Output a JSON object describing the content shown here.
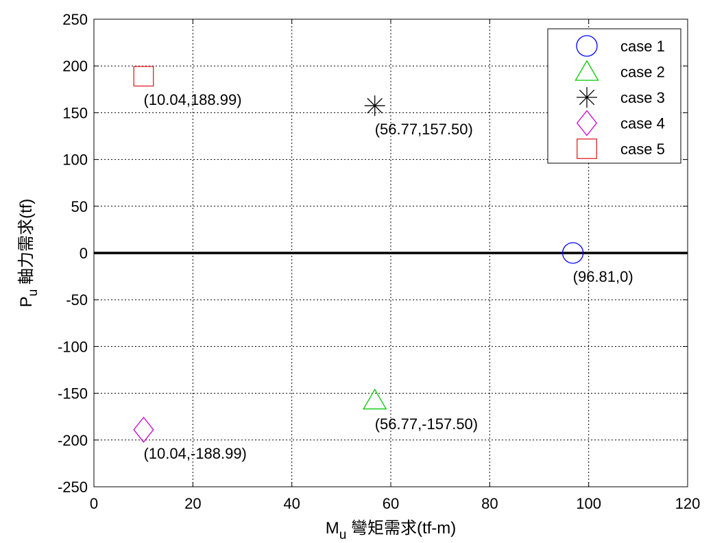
{
  "chart_data": {
    "type": "scatter",
    "title": "",
    "xlabel": {
      "main": "M",
      "sub": "u",
      "rest": " 彎矩需求(tf-m)"
    },
    "ylabel": {
      "main": "P",
      "sub": "u",
      "rest": " 軸力需求(tf)"
    },
    "xlim": [
      0,
      120
    ],
    "ylim": [
      -250,
      250
    ],
    "xticks": [
      0,
      20,
      40,
      60,
      80,
      100,
      120
    ],
    "yticks": [
      250,
      200,
      150,
      100,
      50,
      0,
      -50,
      -100,
      -150,
      -200,
      -250
    ],
    "grid": true,
    "zero_line": true,
    "legend_position": "top-right",
    "colors": {
      "case1": "#0000ff",
      "case2": "#00c800",
      "case3": "#000000",
      "case4": "#c800c8",
      "case5": "#e0202a"
    },
    "series": [
      {
        "name": "case 1",
        "marker": "circle",
        "color": "#0000ff",
        "x": 96.81,
        "y": 0,
        "label": "(96.81,0)"
      },
      {
        "name": "case 2",
        "marker": "triangle",
        "color": "#00c800",
        "x": 56.77,
        "y": -157.5,
        "label": "(56.77,-157.50)"
      },
      {
        "name": "case 3",
        "marker": "asterisk",
        "color": "#000000",
        "x": 56.77,
        "y": 157.5,
        "label": "(56.77,157.50)"
      },
      {
        "name": "case 4",
        "marker": "diamond",
        "color": "#c800c8",
        "x": 10.04,
        "y": -188.99,
        "label": "(10.04,-188.99)"
      },
      {
        "name": "case 5",
        "marker": "square",
        "color": "#e0202a",
        "x": 10.04,
        "y": 188.99,
        "label": "(10.04,188.99)"
      }
    ]
  }
}
